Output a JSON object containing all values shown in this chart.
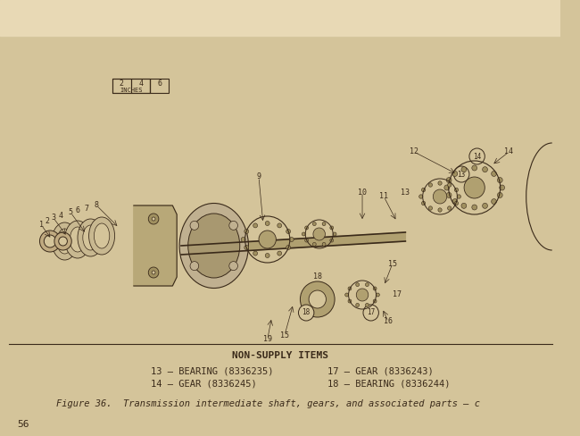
{
  "bg_color_top": "#e8d9b5",
  "bg_color_bottom": "#d4c49a",
  "page_bg": "#d4c49a",
  "text_color": "#3a2a1a",
  "title": "NON-SUPPLY ITEMS",
  "items_left": [
    "13 – BEARING (8336235)",
    "14 – GEAR (8336245)"
  ],
  "items_right": [
    "17 – GEAR (8336243)",
    "18 – BEARING (8336244)"
  ],
  "figure_caption": "Figure 36.  Transmission intermediate shaft, gears, and associated parts – c",
  "page_number": "56",
  "scale_label": "INCHES",
  "scale_ticks": [
    "2",
    "4",
    "6"
  ]
}
